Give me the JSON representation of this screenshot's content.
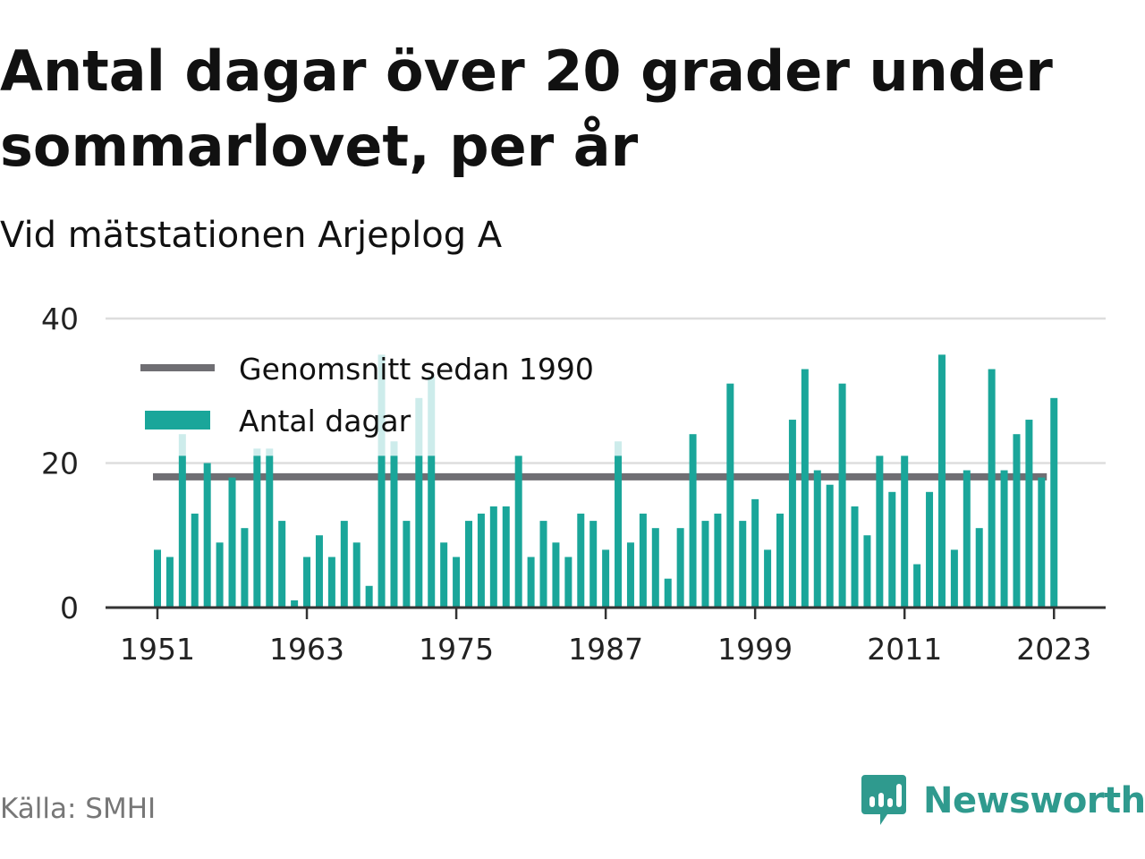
{
  "title": "Antal dagar över 20 grader under sommarlovet, per år",
  "subtitle": "Vid mätstationen Arjeplog A",
  "source": "Källa: SMHI",
  "brand": "Newsworthy",
  "colors": {
    "bar": "#1aa69a",
    "bar_ghost": "#cdeceb",
    "average_line": "#6f6e73",
    "grid": "#dddddd",
    "axis": "#333333",
    "brand": "#2f9a8e"
  },
  "legend": {
    "average_label": "Genomsnitt sedan 1990",
    "bars_label": "Antal dagar"
  },
  "chart_data": {
    "type": "bar",
    "x": [
      1951,
      1952,
      1953,
      1954,
      1955,
      1956,
      1957,
      1958,
      1959,
      1960,
      1961,
      1962,
      1963,
      1964,
      1965,
      1966,
      1967,
      1968,
      1969,
      1970,
      1971,
      1972,
      1973,
      1974,
      1975,
      1976,
      1977,
      1978,
      1979,
      1980,
      1981,
      1982,
      1983,
      1984,
      1985,
      1986,
      1987,
      1988,
      1989,
      1990,
      1991,
      1992,
      1993,
      1994,
      1995,
      1996,
      1997,
      1998,
      1999,
      2000,
      2001,
      2002,
      2003,
      2004,
      2005,
      2006,
      2007,
      2008,
      2009,
      2010,
      2011,
      2012,
      2013,
      2014,
      2015,
      2016,
      2017,
      2018,
      2019,
      2020,
      2021,
      2022,
      2023
    ],
    "values": [
      8,
      7,
      21,
      13,
      20,
      9,
      18,
      11,
      21,
      21,
      12,
      1,
      7,
      10,
      7,
      12,
      9,
      3,
      21,
      21,
      12,
      21,
      21,
      9,
      7,
      12,
      13,
      14,
      14,
      21,
      7,
      12,
      9,
      7,
      13,
      12,
      8,
      21,
      9,
      13,
      11,
      4,
      11,
      24,
      12,
      13,
      31,
      12,
      15,
      8,
      13,
      26,
      33,
      19,
      17,
      31,
      14,
      10,
      21,
      16,
      21,
      6,
      16,
      35,
      8,
      19,
      11,
      33,
      19,
      24,
      26,
      18,
      29
    ],
    "ghost_values": [
      8,
      7,
      24,
      13,
      20,
      9,
      18,
      11,
      22,
      22,
      12,
      1,
      7,
      10,
      7,
      12,
      9,
      3,
      35,
      23,
      12,
      29,
      32,
      9,
      7,
      12,
      13,
      14,
      14,
      21,
      7,
      12,
      9,
      7,
      13,
      12,
      8,
      23,
      9,
      13,
      11,
      4,
      11,
      24,
      12,
      13,
      31,
      12,
      15,
      8,
      13,
      26,
      33,
      19,
      17,
      31,
      14,
      10,
      21,
      16,
      21,
      6,
      16,
      35,
      8,
      19,
      11,
      33,
      19,
      24,
      26,
      18,
      29
    ],
    "average_since_1990": 18.1,
    "average_start_year": 1990,
    "x_ticks": [
      1951,
      1963,
      1975,
      1987,
      1999,
      2011,
      2023
    ],
    "y_ticks": [
      0,
      20,
      40
    ],
    "ylim": [
      0,
      40
    ],
    "grid": true,
    "legend_position": "top-left"
  }
}
